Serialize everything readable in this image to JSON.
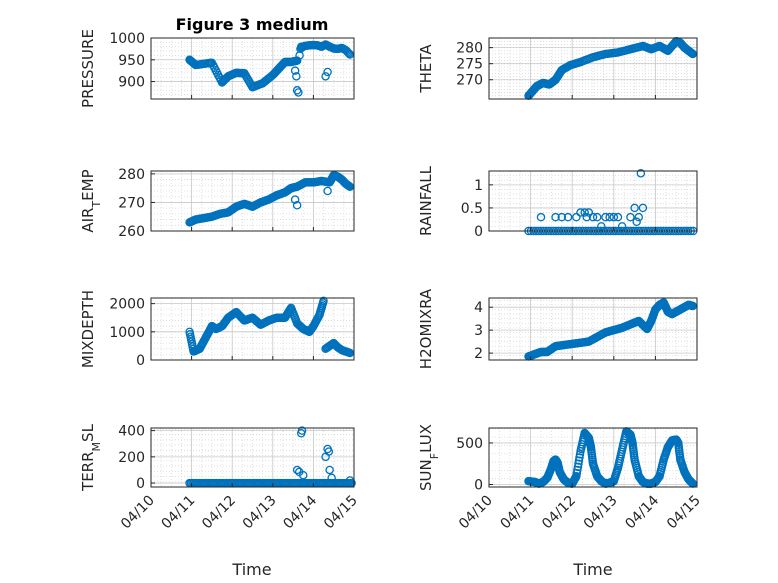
{
  "figure": {
    "title": "Figure 3 medium",
    "xlabel": "Time",
    "marker_color": "#0072BD"
  },
  "chart_data": [
    {
      "type": "scatter",
      "id": "pressure",
      "ylabel": "PRESSURE",
      "ylim": [
        860,
        1000
      ],
      "yticks": [
        900,
        950,
        1000
      ],
      "xlim": [
        "04/10",
        "04/15"
      ],
      "x_ticks": [
        "04/10",
        "04/11",
        "04/12",
        "04/13",
        "04/14",
        "04/15"
      ],
      "show_x_ticklabels": false,
      "grid": true,
      "segments": [
        {
          "x": [
            0.95,
            1.1,
            1.4,
            1.5,
            1.75,
            1.9,
            2.1,
            2.3,
            2.5,
            2.75,
            3.0,
            3.15,
            3.3,
            3.45,
            3.6
          ],
          "y": [
            950,
            938,
            942,
            943,
            898,
            912,
            920,
            919,
            887,
            896,
            915,
            930,
            945,
            945,
            948
          ]
        }
      ],
      "extra_points": [
        {
          "x": 3.55,
          "y": 925
        },
        {
          "x": 3.58,
          "y": 912
        },
        {
          "x": 3.6,
          "y": 880
        },
        {
          "x": 3.63,
          "y": 875
        },
        {
          "x": 3.66,
          "y": 960
        },
        {
          "x": 3.68,
          "y": 975
        },
        {
          "x": 3.7,
          "y": 980
        },
        {
          "x": 4.3,
          "y": 912
        },
        {
          "x": 4.35,
          "y": 922
        }
      ],
      "tail": {
        "x": [
          3.7,
          3.8,
          3.9,
          4.0,
          4.1,
          4.2,
          4.3,
          4.4,
          4.5,
          4.6,
          4.7,
          4.8,
          4.9
        ],
        "y": [
          978,
          982,
          983,
          984,
          983,
          980,
          985,
          980,
          976,
          975,
          977,
          972,
          962
        ]
      }
    },
    {
      "type": "scatter",
      "id": "theta",
      "ylabel": "THETA",
      "ylim": [
        264,
        283
      ],
      "yticks": [
        270,
        275,
        280
      ],
      "xlim": [
        "04/10",
        "04/15"
      ],
      "x_ticks": [
        "04/10",
        "04/11",
        "04/12",
        "04/13",
        "04/14",
        "04/15"
      ],
      "show_x_ticklabels": false,
      "grid": true,
      "segments": [
        {
          "x": [
            0.95,
            1.05,
            1.15,
            1.3,
            1.45,
            1.6,
            1.75,
            1.95,
            2.2,
            2.5,
            2.8,
            3.1,
            3.4,
            3.7,
            3.9,
            4.1,
            4.3,
            4.5,
            4.6,
            4.7,
            4.8,
            4.9
          ],
          "y": [
            265,
            266.5,
            268,
            269,
            268.5,
            270,
            273,
            274.5,
            275.5,
            277,
            278,
            278.5,
            279.5,
            280.5,
            279.5,
            280.5,
            279,
            282,
            281.5,
            280,
            279,
            278
          ]
        }
      ],
      "extra_points": [],
      "tail": {
        "x": [],
        "y": []
      }
    },
    {
      "type": "scatter",
      "id": "air-temp",
      "ylabel": "AIR",
      "ylabel_sub": "T",
      "ylabel_rest": "EMP",
      "ylim": [
        260,
        281
      ],
      "yticks": [
        260,
        270,
        280
      ],
      "xlim": [
        "04/10",
        "04/15"
      ],
      "x_ticks": [
        "04/10",
        "04/11",
        "04/12",
        "04/13",
        "04/14",
        "04/15"
      ],
      "show_x_ticklabels": false,
      "grid": true,
      "segments": [
        {
          "x": [
            0.95,
            1.1,
            1.3,
            1.5,
            1.7,
            1.9,
            2.1,
            2.3,
            2.5,
            2.7,
            2.9,
            3.1,
            3.3,
            3.45,
            3.6,
            3.8,
            4.0,
            4.2,
            4.4,
            4.5,
            4.6,
            4.7,
            4.8,
            4.9
          ],
          "y": [
            263,
            264,
            264.5,
            265,
            266,
            266.5,
            268.5,
            269.5,
            268.5,
            270,
            271,
            272.5,
            273.5,
            275,
            275.5,
            277,
            277,
            277.5,
            277,
            279.5,
            279,
            278,
            276.5,
            275.5
          ]
        }
      ],
      "extra_points": [
        {
          "x": 3.55,
          "y": 271
        },
        {
          "x": 3.6,
          "y": 269
        },
        {
          "x": 4.35,
          "y": 274
        }
      ],
      "tail": {
        "x": [],
        "y": []
      }
    },
    {
      "type": "scatter",
      "id": "rainfall",
      "ylabel": "RAINFALL",
      "ylim": [
        0,
        1.3
      ],
      "yticks": [
        0,
        0.5,
        1
      ],
      "ytick_labels": [
        "0",
        "0.5",
        "1"
      ],
      "xlim": [
        "04/10",
        "04/15"
      ],
      "x_ticks": [
        "04/10",
        "04/11",
        "04/12",
        "04/13",
        "04/14",
        "04/15"
      ],
      "show_x_ticklabels": false,
      "grid": true,
      "segments": [],
      "baseline": {
        "y": 0,
        "x_from": 0.95,
        "x_to": 4.95,
        "step": 0.06
      },
      "extra_points": [
        {
          "x": 1.25,
          "y": 0.3
        },
        {
          "x": 1.6,
          "y": 0.3
        },
        {
          "x": 1.75,
          "y": 0.3
        },
        {
          "x": 1.9,
          "y": 0.3
        },
        {
          "x": 2.1,
          "y": 0.3
        },
        {
          "x": 2.2,
          "y": 0.4
        },
        {
          "x": 2.3,
          "y": 0.4
        },
        {
          "x": 2.35,
          "y": 0.3
        },
        {
          "x": 2.4,
          "y": 0.4
        },
        {
          "x": 2.5,
          "y": 0.3
        },
        {
          "x": 2.6,
          "y": 0.3
        },
        {
          "x": 2.7,
          "y": 0.1
        },
        {
          "x": 2.8,
          "y": 0.3
        },
        {
          "x": 2.9,
          "y": 0.3
        },
        {
          "x": 3.0,
          "y": 0.3
        },
        {
          "x": 3.1,
          "y": 0.3
        },
        {
          "x": 3.2,
          "y": 0.1
        },
        {
          "x": 3.4,
          "y": 0.3
        },
        {
          "x": 3.5,
          "y": 0.5
        },
        {
          "x": 3.55,
          "y": 0.2
        },
        {
          "x": 3.6,
          "y": 0.3
        },
        {
          "x": 3.65,
          "y": 1.25
        },
        {
          "x": 3.7,
          "y": 0.5
        }
      ],
      "tail": {
        "x": [],
        "y": []
      }
    },
    {
      "type": "scatter",
      "id": "mixdepth",
      "ylabel": "MIXDEPTH",
      "ylim": [
        0,
        2200
      ],
      "yticks": [
        0,
        1000,
        2000
      ],
      "xlim": [
        "04/10",
        "04/15"
      ],
      "x_ticks": [
        "04/10",
        "04/11",
        "04/12",
        "04/13",
        "04/14",
        "04/15"
      ],
      "show_x_ticklabels": false,
      "grid": true,
      "segments": [
        {
          "x": [
            0.95,
            1.05,
            1.2,
            1.35,
            1.5,
            1.6,
            1.75,
            1.9,
            2.1,
            2.3,
            2.5,
            2.7,
            2.9,
            3.1,
            3.3,
            3.45,
            3.6,
            3.75,
            3.9,
            4.0,
            4.15,
            4.25
          ],
          "y": [
            1000,
            300,
            400,
            800,
            1200,
            1100,
            1200,
            1500,
            1700,
            1400,
            1500,
            1250,
            1400,
            1500,
            1500,
            1850,
            1300,
            1100,
            1000,
            1200,
            1600,
            2100
          ]
        }
      ],
      "extra_points": [],
      "tail": {
        "x": [
          4.3,
          4.4,
          4.5,
          4.6,
          4.7,
          4.8,
          4.9
        ],
        "y": [
          400,
          500,
          600,
          450,
          350,
          300,
          250
        ]
      }
    },
    {
      "type": "scatter",
      "id": "h2o-mixratio",
      "ylabel": "H2OMIXRA",
      "ylim": [
        1.7,
        4.4
      ],
      "yticks": [
        2,
        3,
        4
      ],
      "xlim": [
        "04/10",
        "04/15"
      ],
      "x_ticks": [
        "04/10",
        "04/11",
        "04/12",
        "04/13",
        "04/14",
        "04/15"
      ],
      "show_x_ticklabels": false,
      "grid": true,
      "segments": [
        {
          "x": [
            0.95,
            1.1,
            1.25,
            1.4,
            1.6,
            1.8,
            2.0,
            2.2,
            2.4,
            2.6,
            2.8,
            3.0,
            3.2,
            3.4,
            3.6,
            3.8,
            3.9,
            4.0,
            4.1,
            4.2,
            4.3,
            4.4,
            4.5,
            4.6,
            4.7,
            4.8,
            4.9
          ],
          "y": [
            1.85,
            1.95,
            2.05,
            2.05,
            2.3,
            2.35,
            2.4,
            2.45,
            2.5,
            2.7,
            2.9,
            3.0,
            3.1,
            3.25,
            3.4,
            3.05,
            3.4,
            3.9,
            4.1,
            4.2,
            3.8,
            3.7,
            3.8,
            3.9,
            4.0,
            4.1,
            4.05
          ]
        }
      ],
      "extra_points": [],
      "tail": {
        "x": [],
        "y": []
      }
    },
    {
      "type": "scatter",
      "id": "terr-msl",
      "ylabel": "TERR",
      "ylabel_sub": "M",
      "ylabel_rest": "SL",
      "ylim": [
        -30,
        420
      ],
      "yticks": [
        0,
        200,
        400
      ],
      "xlim": [
        "04/10",
        "04/15"
      ],
      "x_ticks": [
        "04/10",
        "04/11",
        "04/12",
        "04/13",
        "04/14",
        "04/15"
      ],
      "x_ticklabels": [
        "04/10",
        "04/11",
        "04/12",
        "04/13",
        "04/14",
        "04/15"
      ],
      "show_x_ticklabels": true,
      "grid": true,
      "segments": [],
      "baseline": {
        "y": 0,
        "x_from": 0.95,
        "x_to": 4.95,
        "step": 0.035
      },
      "extra_points": [
        {
          "x": 3.6,
          "y": 100
        },
        {
          "x": 3.65,
          "y": 85
        },
        {
          "x": 3.7,
          "y": 380
        },
        {
          "x": 3.72,
          "y": 400
        },
        {
          "x": 3.75,
          "y": 60
        },
        {
          "x": 4.3,
          "y": 200
        },
        {
          "x": 4.35,
          "y": 260
        },
        {
          "x": 4.38,
          "y": 240
        },
        {
          "x": 4.4,
          "y": 100
        },
        {
          "x": 4.45,
          "y": 40
        },
        {
          "x": 4.9,
          "y": 20
        }
      ],
      "tail": {
        "x": [],
        "y": []
      }
    },
    {
      "type": "scatter",
      "id": "sun-flux",
      "ylabel": "SUN",
      "ylabel_sub": "F",
      "ylabel_rest": "LUX",
      "ylim": [
        -30,
        680
      ],
      "yticks": [
        0,
        500
      ],
      "xlim": [
        "04/10",
        "04/15"
      ],
      "x_ticks": [
        "04/10",
        "04/11",
        "04/12",
        "04/13",
        "04/14",
        "04/15"
      ],
      "x_ticklabels": [
        "04/10",
        "04/11",
        "04/12",
        "04/13",
        "04/14",
        "04/15"
      ],
      "show_x_ticklabels": true,
      "grid": true,
      "segments": [
        {
          "x": [
            0.95,
            1.1,
            1.2,
            1.3,
            1.4,
            1.5,
            1.55,
            1.6,
            1.65,
            1.7,
            1.8,
            1.9,
            2.0,
            2.1,
            2.2,
            2.3,
            2.4,
            2.45,
            2.5,
            2.6,
            2.7,
            2.8,
            2.9,
            3.0,
            3.1,
            3.2,
            3.3,
            3.4,
            3.45,
            3.5,
            3.6,
            3.7,
            3.8,
            3.9,
            4.0,
            4.1,
            4.2,
            4.3,
            4.4,
            4.5,
            4.55,
            4.6,
            4.7,
            4.8,
            4.9
          ],
          "y": [
            40,
            30,
            10,
            30,
            80,
            200,
            280,
            300,
            260,
            150,
            60,
            20,
            10,
            100,
            400,
            620,
            560,
            450,
            250,
            100,
            40,
            10,
            20,
            40,
            200,
            420,
            640,
            600,
            500,
            300,
            100,
            30,
            10,
            10,
            30,
            100,
            300,
            450,
            530,
            540,
            500,
            300,
            150,
            60,
            10
          ]
        }
      ],
      "extra_points": [],
      "tail": {
        "x": [],
        "y": []
      }
    }
  ]
}
